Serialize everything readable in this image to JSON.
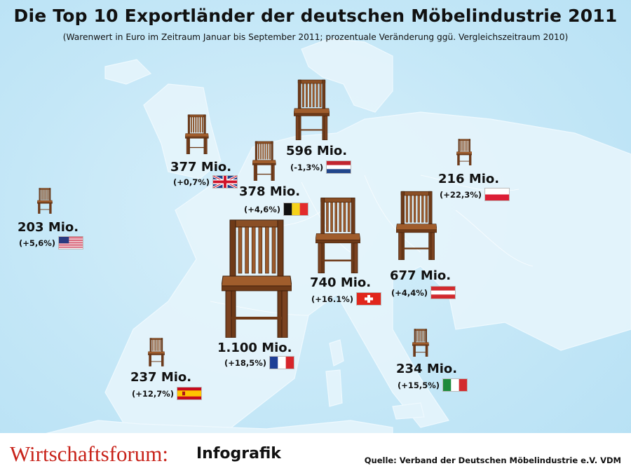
{
  "title": "Die Top 10 Exportländer der deutschen Möbelindustrie 2011",
  "subtitle": "(Warenwert in Euro im Zeitraum Januar bis September 2011; prozentuale Veränderung ggü. Vergleichszeitraum 2010)",
  "chart_data": {
    "type": "bar",
    "unit": "Mio.",
    "categories": [
      "Frankreich",
      "Schweiz",
      "Österreich",
      "Niederlande",
      "Belgien",
      "Großbritannien",
      "Italien",
      "Spanien",
      "Polen",
      "USA"
    ],
    "values": [
      1100,
      740,
      677,
      596,
      378,
      377,
      234,
      237,
      216,
      203
    ],
    "labels": [
      "1.100 Mio.",
      "740 Mio.",
      "677 Mio.",
      "596 Mio.",
      "378 Mio.",
      "377 Mio.",
      "234 Mio.",
      "237 Mio.",
      "216 Mio.",
      "203 Mio."
    ],
    "changes": [
      "(+18,5%)",
      "(+16.1%)",
      "(+4,4%)",
      "(-1,3%)",
      "(+4,6%)",
      "(+0,7%)",
      "(+15,5%)",
      "(+12,7%)",
      "(+22,3%)",
      "(+5,6%)"
    ],
    "flags": [
      "flag-france",
      "flag-switzerland",
      "flag-austria",
      "flag-netherlands",
      "flag-belgium",
      "flag-uk",
      "flag-italy",
      "flag-spain",
      "flag-poland",
      "flag-usa"
    ],
    "marker_icon": "chair-icon"
  },
  "footer": {
    "brand": "Wirtschaftsforum:",
    "brand_sub": "Infografik",
    "source": "Quelle: Verband der Deutschen Möbelindustrie e.V. VDM"
  },
  "colors": {
    "sea": "#c4e7f7",
    "land": "#e3f4fc",
    "chair_wood": "#8a4f25",
    "brand_red": "#c8231a"
  }
}
